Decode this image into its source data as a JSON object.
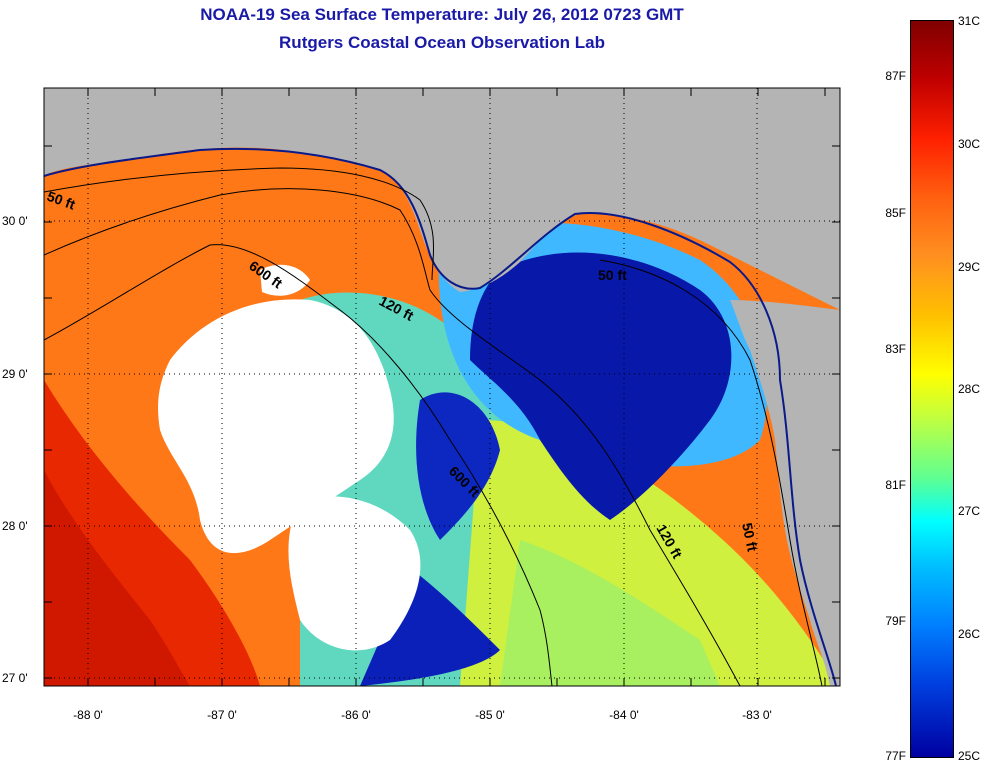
{
  "title": "NOAA-19 Sea Surface Temperature:  July 26, 2012 0723 GMT",
  "subtitle": "Rutgers Coastal Ocean Observation Lab",
  "axes": {
    "longitude_labels": [
      "-88 0'",
      "-87 0'",
      "-86 0'",
      "-85 0'",
      "-84 0'",
      "-83 0'"
    ],
    "latitude_labels": [
      "30 0'",
      "29 0'",
      "28 0'",
      "27 0'"
    ],
    "lon_range": [
      -88.33,
      -82.4
    ],
    "lat_range": [
      26.95,
      30.85
    ]
  },
  "contours": {
    "labels": [
      "50 ft",
      "600 ft",
      "120 ft",
      "50 ft",
      "600 ft",
      "120 ft",
      "50 ft"
    ]
  },
  "colorbar": {
    "celsius_labels": [
      "31C",
      "30C",
      "29C",
      "28C",
      "27C",
      "26C",
      "25C"
    ],
    "fahrenheit_labels": [
      "87F",
      "85F",
      "83F",
      "81F",
      "79F",
      "77F"
    ],
    "range_c": [
      25,
      31
    ]
  },
  "colors": {
    "land": "#b4b4b4",
    "cloud": "#ffffff",
    "warm": "#ff6010",
    "hot": "#e02000",
    "cold": "#0010a0",
    "cool": "#40c0ff",
    "mid": "#ffe000",
    "title": "#1a1aa8"
  }
}
